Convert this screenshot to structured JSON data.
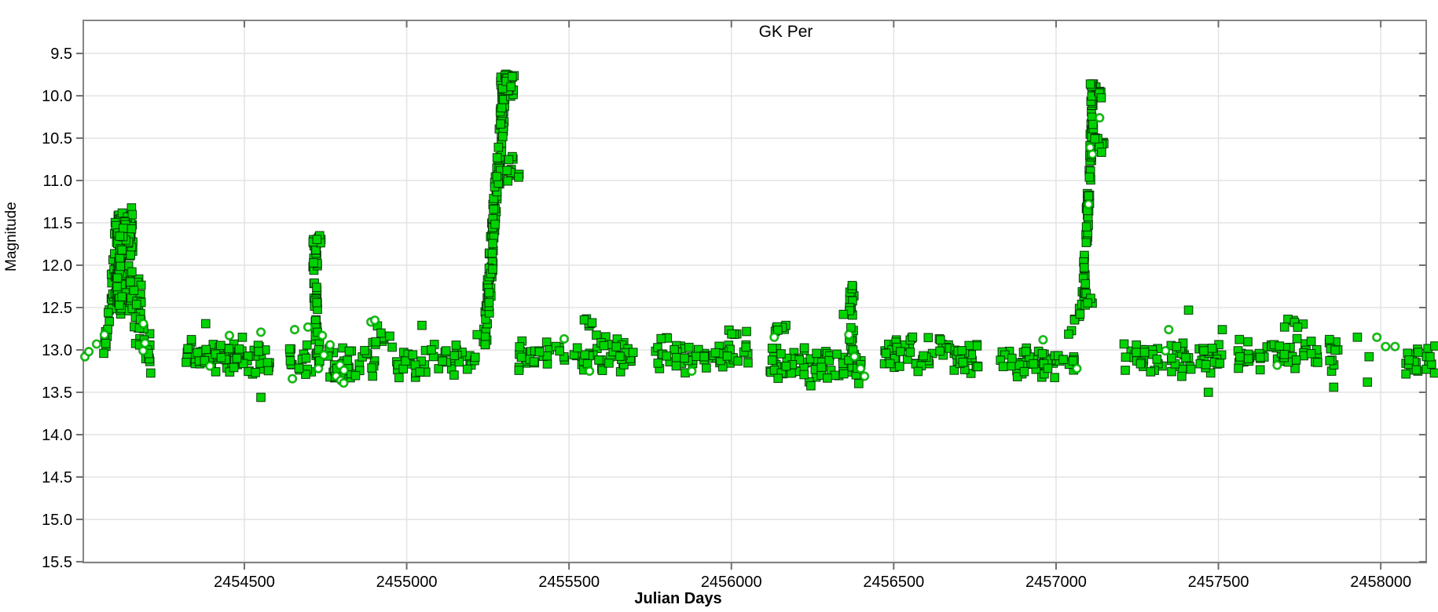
{
  "figure": {
    "title": "GK Per",
    "xlabel": "Julian Days",
    "ylabel": "Magnitude"
  },
  "chart_data": {
    "type": "scatter",
    "title": "GK Per",
    "xlabel": "Julian Days",
    "ylabel": "Magnitude",
    "x_range": [
      2454004,
      2458140
    ],
    "y_range": [
      9.11,
      15.51
    ],
    "y_axis_inverted": true,
    "grid": true,
    "legend": "none",
    "x_ticks": [
      2454500,
      2455000,
      2455500,
      2456000,
      2456500,
      2457000,
      2457500,
      2458000
    ],
    "y_ticks": [
      9.5,
      10.0,
      10.5,
      11.0,
      11.5,
      12.0,
      12.5,
      13.0,
      13.5,
      14.0,
      14.5,
      15.0,
      15.5
    ],
    "y_tick_labels": [
      "9.5",
      "10.0",
      "10.5",
      "11.0",
      "11.5",
      "12.0",
      "12.5",
      "13.0",
      "13.5",
      "14.0",
      "14.5",
      "15.0",
      "15.5"
    ],
    "colors": {
      "marker_fill": "#00d400",
      "marker_edge": "#002d00",
      "circle_ring": "#00c400",
      "circle_fill": "#ffffff",
      "grid": "#e3e3e3",
      "axis": "#858585",
      "tick": "#6e6e6e",
      "text": "#000000",
      "background": "#ffffff"
    },
    "markers": {
      "square_size": 10.6,
      "circle_radius": 4.5
    },
    "series": [
      {
        "name": "filled-square-observations",
        "marker": "square",
        "clusters": [
          {
            "label": "outburst1-rise",
            "t": "b",
            "n": 14,
            "j": [
              2454069,
              2454106
            ],
            "m": [
              12.95,
              12.05
            ],
            "s": 0.15
          },
          {
            "label": "outburst1-core",
            "t": "b",
            "n": 35,
            "j": [
              2454090,
              2454122
            ],
            "m": [
              12.15,
              12.15
            ],
            "s": 0.32
          },
          {
            "label": "outburst1-peak",
            "t": "b",
            "n": 70,
            "j": [
              2454098,
              2454157
            ],
            "m": [
              11.62,
              11.62
            ],
            "s": 0.3
          },
          {
            "label": "outburst1-mid",
            "t": "b",
            "n": 40,
            "j": [
              2454105,
              2454152
            ],
            "m": [
              12.25,
              12.25
            ],
            "s": 0.28
          },
          {
            "label": "outburst1-column",
            "t": "c",
            "n": 30,
            "m": [
              11.55,
              12.55
            ],
            "j0": 2454120,
            "sl": -6,
            "ji": 9
          },
          {
            "label": "outburst1-decline",
            "t": "b",
            "n": 18,
            "j": [
              2454148,
              2454186
            ],
            "m": [
              12.25,
              12.45
            ],
            "s": 0.26
          },
          {
            "label": "outburst1-tail",
            "t": "b",
            "n": 22,
            "j": [
              2454158,
              2454212
            ],
            "m": [
              12.62,
              13.12
            ],
            "s": 0.26
          },
          {
            "label": "quiescence-a",
            "t": "b",
            "n": 85,
            "j": [
              2454318,
              2454582
            ],
            "m": [
              13.06,
              13.1
            ],
            "s": 0.21
          },
          {
            "label": "quiescence-b",
            "t": "b",
            "n": 16,
            "j": [
              2454638,
              2454712
            ],
            "m": [
              13.1,
              13.1
            ],
            "s": 0.18
          },
          {
            "label": "flare2-column",
            "t": "c",
            "n": 45,
            "m": [
              11.7,
              13.15
            ],
            "j0": 2454716,
            "sl": 7,
            "ji": 7
          },
          {
            "label": "flare2-top",
            "t": "b",
            "n": 14,
            "j": [
              2454706,
              2454738
            ],
            "m": [
              11.72,
              11.72
            ],
            "s": 0.11
          },
          {
            "label": "quiescence-c",
            "t": "b",
            "n": 35,
            "j": [
              2454744,
              2454902
            ],
            "m": [
              13.18,
              13.18
            ],
            "s": 0.2
          },
          {
            "label": "rise-c",
            "t": "b",
            "n": 14,
            "j": [
              2454868,
              2454962
            ],
            "m": [
              12.95,
              12.82
            ],
            "s": 0.16
          },
          {
            "label": "quiescence-d",
            "t": "b",
            "n": 45,
            "j": [
              2454960,
              2455218
            ],
            "m": [
              13.12,
              13.12
            ],
            "s": 0.18
          },
          {
            "label": "big-outburst1-column",
            "t": "c",
            "n": 135,
            "m": [
              9.72,
              12.95
            ],
            "j0": 2455305,
            "sl": -20,
            "ji": 8
          },
          {
            "label": "big-outburst1-top",
            "t": "b",
            "n": 26,
            "j": [
              2455288,
              2455332
            ],
            "m": [
              9.88,
              9.88
            ],
            "s": 0.14
          },
          {
            "label": "big-outburst1-shoulder",
            "t": "b",
            "n": 13,
            "j": [
              2455308,
              2455352
            ],
            "m": [
              10.87,
              10.87
            ],
            "s": 0.15
          },
          {
            "label": "quiescence-e",
            "t": "b",
            "n": 70,
            "j": [
              2455345,
              2455698
            ],
            "m": [
              13.05,
              13.05
            ],
            "s": 0.21
          },
          {
            "label": "bright-patch-e",
            "t": "b",
            "n": 6,
            "j": [
              2455538,
              2455578
            ],
            "m": [
              12.68,
              12.68
            ],
            "s": 0.07
          },
          {
            "label": "quiescence-f",
            "t": "b",
            "n": 55,
            "j": [
              2455766,
              2456056
            ],
            "m": [
              13.1,
              13.1
            ],
            "s": 0.17
          },
          {
            "label": "bright-patch-f",
            "t": "b",
            "n": 6,
            "j": [
              2455982,
              2456052
            ],
            "m": [
              12.8,
              12.8
            ],
            "s": 0.07
          },
          {
            "label": "pair-f",
            "t": "b",
            "n": 3,
            "j": [
              2455770,
              2455805
            ],
            "m": [
              12.87,
              12.87
            ],
            "s": 0.05
          },
          {
            "label": "quiescence-g",
            "t": "b",
            "n": 75,
            "j": [
              2456118,
              2456402
            ],
            "m": [
              13.17,
              13.17
            ],
            "s": 0.22
          },
          {
            "label": "bright-edge-g",
            "t": "b",
            "n": 8,
            "j": [
              2456124,
              2456178
            ],
            "m": [
              12.74,
              12.74
            ],
            "s": 0.09
          },
          {
            "label": "mini-outburst-column",
            "t": "c",
            "n": 22,
            "m": [
              12.15,
              13.02
            ],
            "j0": 2456372,
            "sl": -5,
            "ji": 7
          },
          {
            "label": "quiescence-h",
            "t": "b",
            "n": 70,
            "j": [
              2456468,
              2456766
            ],
            "m": [
              13.05,
              13.05
            ],
            "s": 0.2
          },
          {
            "label": "quiescence-i",
            "t": "b",
            "n": 55,
            "j": [
              2456828,
              2457062
            ],
            "m": [
              13.15,
              13.15
            ],
            "s": 0.18
          },
          {
            "label": "pre-big-outburst2-rise",
            "t": "b",
            "n": 8,
            "j": [
              2457038,
              2457086
            ],
            "m": [
              12.82,
              12.42
            ],
            "s": 0.09
          },
          {
            "label": "big-outburst2-column",
            "t": "c",
            "n": 70,
            "m": [
              9.85,
              12.4
            ],
            "j0": 2457117,
            "sl": -13,
            "ji": 5
          },
          {
            "label": "big-outburst2-top",
            "t": "b",
            "n": 16,
            "j": [
              2457100,
              2457140
            ],
            "m": [
              9.95,
              9.95
            ],
            "s": 0.11
          },
          {
            "label": "big-outburst2-shoulder",
            "t": "b",
            "n": 9,
            "j": [
              2457118,
              2457154
            ],
            "m": [
              10.6,
              10.6
            ],
            "s": 0.13
          },
          {
            "label": "big-outburst2-base",
            "t": "b",
            "n": 6,
            "j": [
              2457072,
              2457112
            ],
            "m": [
              12.45,
              12.45
            ],
            "s": 0.12
          },
          {
            "label": "quiescence-j",
            "t": "b",
            "n": 65,
            "j": [
              2457206,
              2457520
            ],
            "m": [
              13.1,
              13.1
            ],
            "s": 0.22
          },
          {
            "label": "quiescence-k",
            "t": "b",
            "n": 60,
            "j": [
              2457556,
              2457872
            ],
            "m": [
              13.05,
              13.05
            ],
            "s": 0.2
          },
          {
            "label": "bright-patch-k",
            "t": "b",
            "n": 6,
            "j": [
              2457700,
              2457762
            ],
            "m": [
              12.68,
              12.68
            ],
            "s": 0.07
          },
          {
            "label": "right-edge-cluster",
            "t": "b",
            "n": 22,
            "j": [
              2458076,
              2458168
            ],
            "m": [
              13.15,
              13.15
            ],
            "s": 0.18
          }
        ],
        "points": [
          [
            2454067,
            13.04
          ],
          [
            2454081,
            12.56
          ],
          [
            2454381,
            12.69
          ],
          [
            2454551,
            13.56
          ],
          [
            2455047,
            12.71
          ],
          [
            2455217,
            12.82
          ],
          [
            2456345,
            12.58
          ],
          [
            2457408,
            12.53
          ],
          [
            2457469,
            13.5
          ],
          [
            2457512,
            12.76
          ],
          [
            2457855,
            13.44
          ],
          [
            2457928,
            12.85
          ],
          [
            2457964,
            13.08
          ],
          [
            2457959,
            13.38
          ]
        ]
      },
      {
        "name": "open-circle-observations",
        "marker": "circle",
        "clusters": [],
        "points": [
          [
            2454009,
            13.08
          ],
          [
            2454021,
            13.02
          ],
          [
            2454045,
            12.93
          ],
          [
            2454069,
            12.82
          ],
          [
            2454188,
            13.01
          ],
          [
            2454194,
            12.92
          ],
          [
            2454189,
            12.69
          ],
          [
            2454394,
            13.19
          ],
          [
            2454454,
            12.83
          ],
          [
            2454551,
            12.79
          ],
          [
            2454648,
            13.34
          ],
          [
            2454655,
            12.76
          ],
          [
            2454696,
            12.73
          ],
          [
            2454728,
            13.22
          ],
          [
            2454745,
            13.06
          ],
          [
            2454740,
            12.83
          ],
          [
            2454764,
            12.94
          ],
          [
            2454783,
            13.31
          ],
          [
            2454795,
            13.18
          ],
          [
            2454807,
            13.24
          ],
          [
            2454797,
            13.36
          ],
          [
            2454806,
            13.39
          ],
          [
            2454890,
            12.67
          ],
          [
            2454902,
            12.65
          ],
          [
            2455485,
            12.87
          ],
          [
            2455563,
            13.25
          ],
          [
            2455878,
            13.25
          ],
          [
            2456132,
            12.85
          ],
          [
            2456362,
            12.82
          ],
          [
            2456379,
            13.08
          ],
          [
            2456398,
            13.22
          ],
          [
            2456410,
            13.31
          ],
          [
            2456960,
            12.88
          ],
          [
            2457064,
            13.22
          ],
          [
            2457134,
            10.26
          ],
          [
            2457105,
            10.61
          ],
          [
            2457112,
            10.69
          ],
          [
            2457100,
            11.28
          ],
          [
            2457347,
            12.76
          ],
          [
            2457337,
            13.01
          ],
          [
            2457681,
            13.18
          ],
          [
            2457988,
            12.85
          ],
          [
            2458015,
            12.96
          ],
          [
            2458044,
            12.96
          ]
        ]
      }
    ]
  }
}
